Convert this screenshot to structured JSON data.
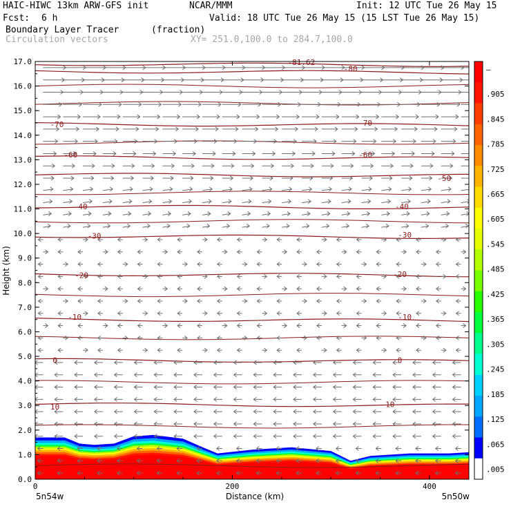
{
  "header": {
    "model": "HAIC-HIWC 13km ARW-GFS init",
    "org": "NCAR/MMM",
    "init": "Init: 12 UTC Tue 26 May 15",
    "fcst_label": "Fcst:",
    "fcst_value": "6 h",
    "valid": "Valid: 18 UTC Tue 26 May 15 (15 LST Tue 26 May 15)",
    "field1_name": "Boundary Layer Tracer",
    "field1_units": "(fraction)",
    "field2_name": "Circulation vectors",
    "xy_range": "XY= 251.0,100.0 to 284.7,100.0"
  },
  "colors": {
    "contour": "#8b1a1a",
    "vector": "#6e6e6e",
    "colorbar": [
      "#ffffff",
      "#0000ff",
      "#006eff",
      "#00a6ff",
      "#00d2ff",
      "#00ffd2",
      "#00ff8c",
      "#00ff3c",
      "#28ff00",
      "#78ff00",
      "#b4ff00",
      "#e6ff00",
      "#ffff00",
      "#ffdc00",
      "#ffb400",
      "#ff8c00",
      "#ff6400",
      "#ff3c00",
      "#ff1400",
      "#ff0000"
    ]
  },
  "chart_data": {
    "type": "cross-section",
    "xlabel": "Distance (km)",
    "ylabel": "Height (km)",
    "xlim": [
      0,
      440
    ],
    "ylim": [
      0.0,
      17.0
    ],
    "x_ticks": [
      "0",
      "200",
      "400"
    ],
    "x_tick_values": [
      0,
      200,
      400
    ],
    "y_ticks": [
      "0.0",
      "1.0",
      "2.0",
      "3.0",
      "4.0",
      "5.0",
      "6.0",
      "7.0",
      "8.0",
      "9.0",
      "10.0",
      "11.0",
      "12.0",
      "13.0",
      "14.0",
      "15.0",
      "16.0",
      "17.0"
    ],
    "y_tick_values": [
      0,
      1,
      2,
      3,
      4,
      5,
      6,
      7,
      8,
      9,
      10,
      11,
      12,
      13,
      14,
      15,
      16,
      17
    ],
    "left_endpoint": "5n54w",
    "right_endpoint": "5n50w",
    "colorbar_labels": [
      ".005",
      ".065",
      ".125",
      ".185",
      ".245",
      ".305",
      ".365",
      ".425",
      ".485",
      ".545",
      ".605",
      ".665",
      ".725",
      ".785",
      ".845",
      ".905",
      "–"
    ],
    "temperature_contours": [
      {
        "label": "10",
        "height": 3.05
      },
      {
        "label": "0",
        "height": 4.85
      },
      {
        "label": "-10",
        "height": 6.5
      },
      {
        "label": "-20",
        "height": 8.35
      },
      {
        "label": "-30",
        "height": 9.9
      },
      {
        "label": "-40",
        "height": 11.1
      },
      {
        "label": "-50",
        "height": 12.4
      },
      {
        "label": "-60",
        "height": 13.1
      },
      {
        "label": "-70",
        "height": 14.45
      },
      {
        "label": "-80",
        "height": 16.6
      },
      {
        "label": "-81.62",
        "height": 16.9
      }
    ],
    "contour_label_positions": [
      {
        "label": "10",
        "x": 20,
        "height": 2.95
      },
      {
        "label": "10",
        "x": 360,
        "height": 3.05
      },
      {
        "label": "0",
        "x": 20,
        "height": 4.85
      },
      {
        "label": "0",
        "x": 370,
        "height": 4.85
      },
      {
        "label": "-10",
        "x": 40,
        "height": 6.6
      },
      {
        "label": "-10",
        "x": 375,
        "height": 6.6
      },
      {
        "label": "-20",
        "x": 47,
        "height": 8.3
      },
      {
        "label": "-20",
        "x": 370,
        "height": 8.35
      },
      {
        "label": "-30",
        "x": 60,
        "height": 9.9
      },
      {
        "label": "-30",
        "x": 375,
        "height": 9.95
      },
      {
        "label": "-40",
        "x": 46,
        "height": 11.1
      },
      {
        "label": "-40",
        "x": 372,
        "height": 11.1
      },
      {
        "label": "-50",
        "x": 415,
        "height": 12.25
      },
      {
        "label": "-60",
        "x": 36,
        "height": 13.2
      },
      {
        "label": "-60",
        "x": 335,
        "height": 13.2
      },
      {
        "label": "-70",
        "x": 22,
        "height": 14.45
      },
      {
        "label": "-70",
        "x": 335,
        "height": 14.5
      },
      {
        "label": "-80",
        "x": 320,
        "height": 16.7
      },
      {
        "label": "-81.62",
        "x": 270,
        "height": 16.97
      }
    ],
    "tracer_top_profile": [
      {
        "x": 0,
        "height": 1.7
      },
      {
        "x": 30,
        "height": 1.7
      },
      {
        "x": 45,
        "height": 1.45
      },
      {
        "x": 60,
        "height": 1.4
      },
      {
        "x": 80,
        "height": 1.45
      },
      {
        "x": 100,
        "height": 1.75
      },
      {
        "x": 120,
        "height": 1.8
      },
      {
        "x": 150,
        "height": 1.65
      },
      {
        "x": 170,
        "height": 1.3
      },
      {
        "x": 185,
        "height": 1.05
      },
      {
        "x": 220,
        "height": 1.2
      },
      {
        "x": 260,
        "height": 1.3
      },
      {
        "x": 300,
        "height": 1.15
      },
      {
        "x": 320,
        "height": 0.75
      },
      {
        "x": 340,
        "height": 0.95
      },
      {
        "x": 380,
        "height": 1.05
      },
      {
        "x": 420,
        "height": 1.05
      },
      {
        "x": 440,
        "height": 1.1
      }
    ]
  }
}
